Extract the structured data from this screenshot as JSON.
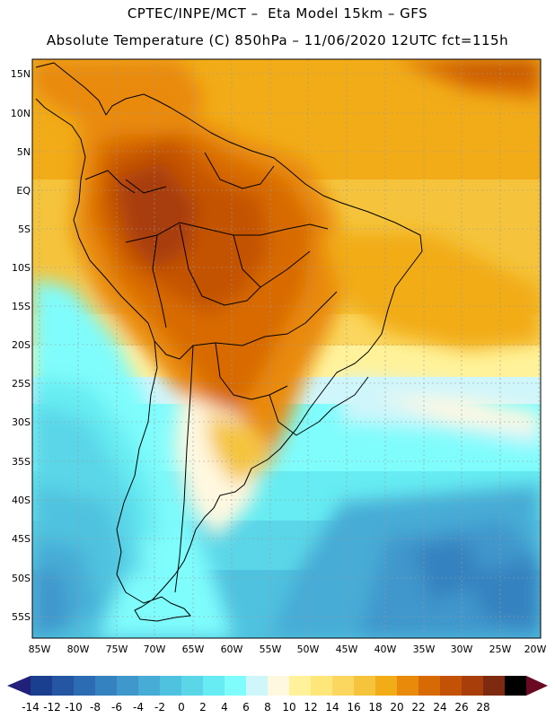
{
  "header": {
    "line1": "CPTEC/INPE/MCT –  Eta Model 15km – GFS",
    "line2": "Absolute Temperature (C) 850hPa – 11/06/2020 12UTC fct=115h"
  },
  "map": {
    "region": "South America",
    "lat_labels": [
      "15N",
      "10N",
      "5N",
      "EQ",
      "5S",
      "10S",
      "15S",
      "20S",
      "25S",
      "30S",
      "35S",
      "40S",
      "45S",
      "50S",
      "55S"
    ],
    "lon_labels": [
      "85W",
      "80W",
      "75W",
      "70W",
      "65W",
      "60W",
      "55W",
      "50W",
      "45W",
      "40W",
      "35W",
      "30W",
      "25W",
      "20W"
    ],
    "lat_range": [
      -58,
      16.5
    ],
    "lon_range": [
      -86,
      -20
    ]
  },
  "colorbar": {
    "labels": [
      "-14",
      "-12",
      "-10",
      "-8",
      "-6",
      "-4",
      "-2",
      "0",
      "2",
      "4",
      "6",
      "8",
      "10",
      "12",
      "14",
      "16",
      "18",
      "20",
      "22",
      "24",
      "26",
      "28"
    ],
    "colors": [
      "#1a3f8f",
      "#2456a3",
      "#2c6cb3",
      "#3582c0",
      "#3f97cc",
      "#47acd6",
      "#4fc2df",
      "#5ad6e8",
      "#66ecf2",
      "#7ffcfc",
      "#cff6fb",
      "#fff8e0",
      "#fff29a",
      "#fde77a",
      "#fbd760",
      "#f5c43c",
      "#f2ac18",
      "#e98a0a",
      "#d86a06",
      "#c45206",
      "#a83e0a",
      "#7e2a10"
    ],
    "low_arrow_color": "#21207a",
    "high_arrow_color": "#6a0a22"
  }
}
